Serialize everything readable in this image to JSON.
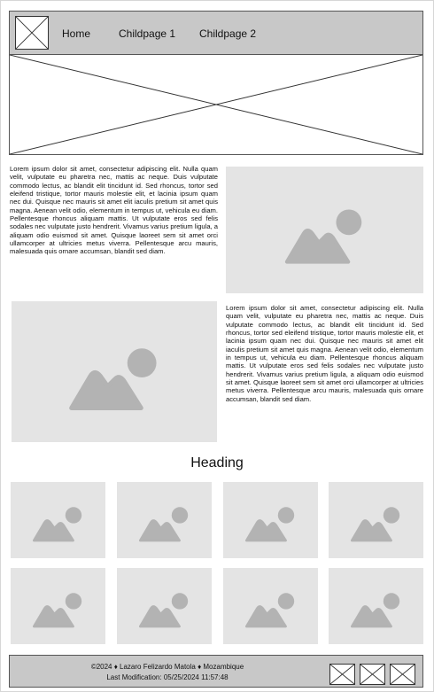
{
  "nav": {
    "links": [
      "Home",
      "Childpage 1",
      "Childpage 2"
    ]
  },
  "content": {
    "paragraph_1": "Lorem ipsum dolor sit amet, consectetur adipiscing elit. Nulla quam velit, vulputate eu pharetra nec, mattis ac neque. Duis vulputate commodo lectus, ac blandit elit tincidunt id. Sed rhoncus, tortor sed eleifend tristique, tortor mauris molestie elit, et lacinia ipsum quam nec dui. Quisque nec mauris sit amet elit iaculis pretium sit amet quis magna. Aenean velit odio, elementum in tempus ut, vehicula eu diam. Pellentesque rhoncus aliquam mattis. Ut vulputate eros sed felis sodales nec vulputate justo hendrerit. Vivamus varius pretium ligula, a aliquam odio euismod sit amet. Quisque laoreet sem sit amet orci ullamcorper at ultricies metus viverra. Pellentesque arcu mauris, malesuada quis ornare accumsan, blandit sed diam.",
    "paragraph_2": "Lorem ipsum dolor sit amet, consectetur adipiscing elit. Nulla quam velit, vulputate eu pharetra nec, mattis ac neque. Duis vulputate commodo lectus, ac blandit elit tincidunt id. Sed rhoncus, tortor sed eleifend tristique, tortor mauris molestie elit, et lacinia ipsum quam nec dui. Quisque nec mauris sit amet elit iaculis pretium sit amet quis magna. Aenean velit odio, elementum in tempus ut, vehicula eu diam. Pellentesque rhoncus aliquam mattis. Ut vulputate eros sed felis sodales nec vulputate justo hendrerit. Vivamus varius pretium ligula, a aliquam odio euismod sit amet. Quisque laoreet sem sit amet orci ullamcorper at ultricies metus viverra. Pellentesque arcu mauris, malesuada quis ornare accumsan, blandit sed diam."
  },
  "gallery": {
    "heading": "Heading",
    "image_count": 8
  },
  "footer": {
    "copyright": "©2024 ♦ Lazaro Felizardo Matola ♦ Mozambique",
    "last_modified": "Last Modification: 05/25/2024 11:57:48"
  },
  "colors": {
    "header_bg": "#c8c8c8",
    "placeholder_bg": "#e4e4e4",
    "placeholder_icon": "#b3b3b3",
    "border": "#555555"
  },
  "icons": {
    "logo": "image-placeholder-x-icon",
    "hero": "image-placeholder-x-icon",
    "content_images": "mountain-sun-image-icon",
    "social": [
      "social-link-x-icon",
      "social-link-x-icon",
      "social-link-x-icon"
    ]
  }
}
